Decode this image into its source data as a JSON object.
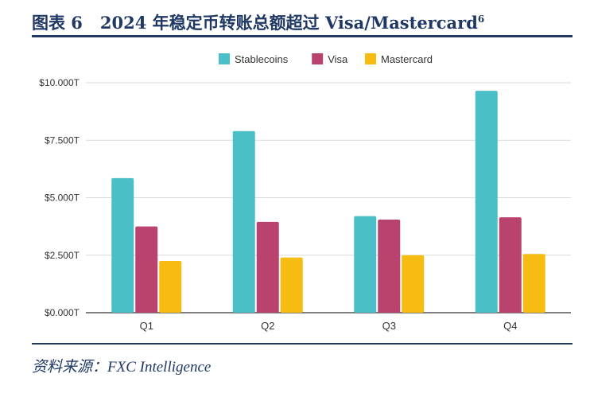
{
  "figure": {
    "caption_label": "图表 6",
    "caption_title": "2024 年稳定币转账总额超过 Visa/Mastercard",
    "footnote_ref": "6",
    "source": "资料来源：FXC Intelligence"
  },
  "colors": {
    "title": "#1f3864",
    "Stablecoins": "#4bbfc8",
    "Visa": "#b9426e",
    "Mastercard": "#f7bc12",
    "grid": "#d9d9d9"
  },
  "chart_data": {
    "type": "bar",
    "categories": [
      "Q1",
      "Q2",
      "Q3",
      "Q4"
    ],
    "series": [
      {
        "name": "Stablecoins",
        "values": [
          5.85,
          7.9,
          4.2,
          9.65
        ]
      },
      {
        "name": "Visa",
        "values": [
          3.75,
          3.95,
          4.05,
          4.15
        ]
      },
      {
        "name": "Mastercard",
        "values": [
          2.25,
          2.4,
          2.5,
          2.55
        ]
      }
    ],
    "ylim": [
      0,
      10
    ],
    "yticks": [
      0,
      2.5,
      5,
      7.5,
      10
    ],
    "ytick_labels": [
      "$0.000T",
      "$2.500T",
      "$5.000T",
      "$7.500T",
      "$10.000T"
    ],
    "grid": true,
    "legend_position": "top-center",
    "title": "",
    "xlabel": "",
    "ylabel": ""
  }
}
